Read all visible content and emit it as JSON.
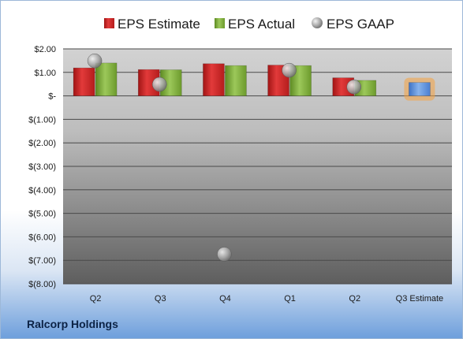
{
  "company": "Ralcorp Holdings",
  "colors": {
    "estimate": "#d42a2a",
    "actual": "#7fae3c",
    "gaap": "#a8a8a8",
    "projected": "#5b8fd8",
    "projected_glow": "#f6a33f"
  },
  "chart_data": {
    "type": "bar",
    "title": "",
    "xlabel": "",
    "ylabel": "",
    "ylim": [
      -8,
      2
    ],
    "yticks": [
      2,
      1,
      0,
      -1,
      -2,
      -3,
      -4,
      -5,
      -6,
      -7,
      -8
    ],
    "ytick_labels": [
      "$2.00",
      "$1.00",
      "$-",
      "$(1.00)",
      "$(2.00)",
      "$(3.00)",
      "$(4.00)",
      "$(5.00)",
      "$(6.00)",
      "$(7.00)",
      "$(8.00)"
    ],
    "grid": true,
    "legend_position": "top",
    "categories": [
      "Q2",
      "Q3",
      "Q4",
      "Q1",
      "Q2",
      "Q3 Estimate"
    ],
    "series": [
      {
        "name": "EPS Estimate",
        "kind": "bar",
        "values": [
          1.19,
          1.12,
          1.37,
          1.31,
          0.77,
          null
        ]
      },
      {
        "name": "EPS Actual",
        "kind": "bar",
        "values": [
          1.4,
          1.11,
          1.29,
          1.29,
          0.66,
          null
        ]
      },
      {
        "name": "EPS GAAP",
        "kind": "point",
        "values": [
          1.49,
          0.49,
          -6.74,
          1.09,
          0.38,
          null
        ]
      }
    ],
    "projection": {
      "category": "Q3 Estimate",
      "value": 0.57
    }
  }
}
